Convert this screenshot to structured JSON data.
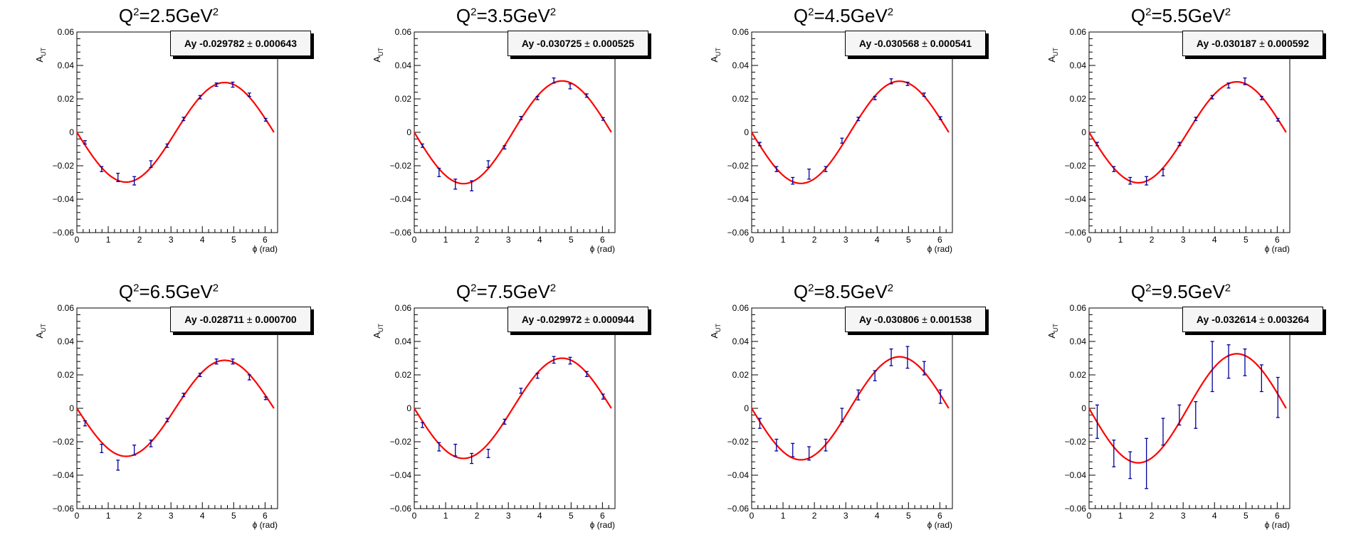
{
  "axis_title_y": "A",
  "axis_title_y_sub": "UT",
  "axis_title_x": "ϕ (rad)",
  "pm_symbol": "±",
  "colors": {
    "fit": "#ff0000",
    "points": "#000099",
    "frame": "#000000"
  },
  "chart_data": [
    {
      "type": "scatter",
      "title_prefix": "Q",
      "title_sup1": "2",
      "title_mid": "=2.5GeV",
      "title_sup2": "2",
      "legend_label": "Ay",
      "legend_value": "-0.029782",
      "legend_error": "0.000643",
      "xlabel": "ϕ (rad)",
      "ylabel": "A_UT",
      "xlim": [
        0,
        6.4
      ],
      "ylim": [
        -0.06,
        0.06
      ],
      "x_ticks": [
        0,
        1,
        2,
        3,
        4,
        5,
        6
      ],
      "y_ticks": [
        -0.06,
        -0.04,
        -0.02,
        0,
        0.02,
        0.04,
        0.06
      ],
      "y_tick_labels": [
        "−0.06",
        "−0.04",
        "−0.02",
        "0",
        "0.02",
        "0.04",
        "0.06"
      ],
      "fit": {
        "function": "Ay*sin(phi)",
        "Ay": -0.029782,
        "Ay_error": 0.000643
      },
      "x": [
        0.26,
        0.79,
        1.31,
        1.83,
        2.36,
        2.88,
        3.4,
        3.93,
        4.45,
        4.97,
        5.5,
        6.02
      ],
      "y": [
        -0.006,
        -0.022,
        -0.027,
        -0.029,
        -0.019,
        -0.008,
        0.008,
        0.021,
        0.0285,
        0.0285,
        0.0225,
        0.0075
      ],
      "err": [
        0.001,
        0.0015,
        0.0025,
        0.0025,
        0.002,
        0.001,
        0.001,
        0.001,
        0.001,
        0.0015,
        0.001,
        0.0008
      ]
    },
    {
      "type": "scatter",
      "title_prefix": "Q",
      "title_sup1": "2",
      "title_mid": "=3.5GeV",
      "title_sup2": "2",
      "legend_label": "Ay",
      "legend_value": "-0.030725",
      "legend_error": "0.000525",
      "xlabel": "ϕ (rad)",
      "ylabel": "A_UT",
      "xlim": [
        0,
        6.4
      ],
      "ylim": [
        -0.06,
        0.06
      ],
      "x_ticks": [
        0,
        1,
        2,
        3,
        4,
        5,
        6
      ],
      "y_ticks": [
        -0.06,
        -0.04,
        -0.02,
        0,
        0.02,
        0.04,
        0.06
      ],
      "y_tick_labels": [
        "−0.06",
        "−0.04",
        "−0.02",
        "0",
        "0.02",
        "0.04",
        "0.06"
      ],
      "fit": {
        "function": "Ay*sin(phi)",
        "Ay": -0.030725,
        "Ay_error": 0.000525
      },
      "x": [
        0.26,
        0.79,
        1.31,
        1.83,
        2.36,
        2.88,
        3.4,
        3.93,
        4.45,
        4.97,
        5.5,
        6.02
      ],
      "y": [
        -0.008,
        -0.024,
        -0.031,
        -0.032,
        -0.019,
        -0.009,
        0.0085,
        0.0205,
        0.031,
        0.0275,
        0.022,
        0.008
      ],
      "err": [
        0.001,
        0.0025,
        0.003,
        0.003,
        0.002,
        0.001,
        0.001,
        0.001,
        0.0015,
        0.0015,
        0.001,
        0.0008
      ]
    },
    {
      "type": "scatter",
      "title_prefix": "Q",
      "title_sup1": "2",
      "title_mid": "=4.5GeV",
      "title_sup2": "2",
      "legend_label": "Ay",
      "legend_value": "-0.030568",
      "legend_error": "0.000541",
      "xlabel": "ϕ (rad)",
      "ylabel": "A_UT",
      "xlim": [
        0,
        6.4
      ],
      "ylim": [
        -0.06,
        0.06
      ],
      "x_ticks": [
        0,
        1,
        2,
        3,
        4,
        5,
        6
      ],
      "y_ticks": [
        -0.06,
        -0.04,
        -0.02,
        0,
        0.02,
        0.04,
        0.06
      ],
      "y_tick_labels": [
        "−0.06",
        "−0.04",
        "−0.02",
        "0",
        "0.02",
        "0.04",
        "0.06"
      ],
      "fit": {
        "function": "Ay*sin(phi)",
        "Ay": -0.030568,
        "Ay_error": 0.000541
      },
      "x": [
        0.26,
        0.79,
        1.31,
        1.83,
        2.36,
        2.88,
        3.4,
        3.93,
        4.45,
        4.97,
        5.5,
        6.02
      ],
      "y": [
        -0.007,
        -0.022,
        -0.029,
        -0.025,
        -0.022,
        -0.005,
        0.008,
        0.0205,
        0.0305,
        0.029,
        0.0225,
        0.0085
      ],
      "err": [
        0.001,
        0.0015,
        0.002,
        0.003,
        0.0015,
        0.0015,
        0.001,
        0.001,
        0.0015,
        0.001,
        0.001,
        0.0008
      ]
    },
    {
      "type": "scatter",
      "title_prefix": "Q",
      "title_sup1": "2",
      "title_mid": "=5.5GeV",
      "title_sup2": "2",
      "legend_label": "Ay",
      "legend_value": "-0.030187",
      "legend_error": "0.000592",
      "xlabel": "ϕ (rad)",
      "ylabel": "A_UT",
      "xlim": [
        0,
        6.4
      ],
      "ylim": [
        -0.06,
        0.06
      ],
      "x_ticks": [
        0,
        1,
        2,
        3,
        4,
        5,
        6
      ],
      "y_ticks": [
        -0.06,
        -0.04,
        -0.02,
        0,
        0.02,
        0.04,
        0.06
      ],
      "y_tick_labels": [
        "−0.06",
        "−0.04",
        "−0.02",
        "0",
        "0.02",
        "0.04",
        "0.06"
      ],
      "fit": {
        "function": "Ay*sin(phi)",
        "Ay": -0.030187,
        "Ay_error": 0.000592
      },
      "x": [
        0.26,
        0.79,
        1.31,
        1.83,
        2.36,
        2.88,
        3.4,
        3.93,
        4.45,
        4.97,
        5.5,
        6.02
      ],
      "y": [
        -0.007,
        -0.022,
        -0.029,
        -0.029,
        -0.024,
        -0.007,
        0.008,
        0.021,
        0.028,
        0.0305,
        0.0205,
        0.0075
      ],
      "err": [
        0.001,
        0.0015,
        0.002,
        0.0025,
        0.002,
        0.001,
        0.001,
        0.001,
        0.0015,
        0.002,
        0.001,
        0.0008
      ]
    },
    {
      "type": "scatter",
      "title_prefix": "Q",
      "title_sup1": "2",
      "title_mid": "=6.5GeV",
      "title_sup2": "2",
      "legend_label": "Ay",
      "legend_value": "-0.028711",
      "legend_error": "0.000700",
      "xlabel": "ϕ (rad)",
      "ylabel": "A_UT",
      "xlim": [
        0,
        6.4
      ],
      "ylim": [
        -0.06,
        0.06
      ],
      "x_ticks": [
        0,
        1,
        2,
        3,
        4,
        5,
        6
      ],
      "y_ticks": [
        -0.06,
        -0.04,
        -0.02,
        0,
        0.02,
        0.04,
        0.06
      ],
      "y_tick_labels": [
        "−0.06",
        "−0.04",
        "−0.02",
        "0",
        "0.02",
        "0.04",
        "0.06"
      ],
      "fit": {
        "function": "Ay*sin(phi)",
        "Ay": -0.028711,
        "Ay_error": 0.0007
      },
      "x": [
        0.26,
        0.79,
        1.31,
        1.83,
        2.36,
        2.88,
        3.4,
        3.93,
        4.45,
        4.97,
        5.5,
        6.02
      ],
      "y": [
        -0.009,
        -0.024,
        -0.034,
        -0.025,
        -0.021,
        -0.007,
        0.008,
        0.02,
        0.028,
        0.028,
        0.0185,
        0.006
      ],
      "err": [
        0.0015,
        0.0025,
        0.003,
        0.003,
        0.002,
        0.001,
        0.001,
        0.001,
        0.0015,
        0.0015,
        0.0015,
        0.0008
      ]
    },
    {
      "type": "scatter",
      "title_prefix": "Q",
      "title_sup1": "2",
      "title_mid": "=7.5GeV",
      "title_sup2": "2",
      "legend_label": "Ay",
      "legend_value": "-0.029972",
      "legend_error": "0.000944",
      "xlabel": "ϕ (rad)",
      "ylabel": "A_UT",
      "xlim": [
        0,
        6.4
      ],
      "ylim": [
        -0.06,
        0.06
      ],
      "x_ticks": [
        0,
        1,
        2,
        3,
        4,
        5,
        6
      ],
      "y_ticks": [
        -0.06,
        -0.04,
        -0.02,
        0,
        0.02,
        0.04,
        0.06
      ],
      "y_tick_labels": [
        "−0.06",
        "−0.04",
        "−0.02",
        "0",
        "0.02",
        "0.04",
        "0.06"
      ],
      "fit": {
        "function": "Ay*sin(phi)",
        "Ay": -0.029972,
        "Ay_error": 0.000944
      },
      "x": [
        0.26,
        0.79,
        1.31,
        1.83,
        2.36,
        2.88,
        3.4,
        3.93,
        4.45,
        4.97,
        5.5,
        6.02
      ],
      "y": [
        -0.01,
        -0.023,
        -0.025,
        -0.03,
        -0.027,
        -0.008,
        0.0105,
        0.0195,
        0.029,
        0.0285,
        0.0205,
        0.007
      ],
      "err": [
        0.0015,
        0.0025,
        0.0035,
        0.003,
        0.0025,
        0.0015,
        0.0015,
        0.0015,
        0.002,
        0.002,
        0.0015,
        0.0015
      ]
    },
    {
      "type": "scatter",
      "title_prefix": "Q",
      "title_sup1": "2",
      "title_mid": "=8.5GeV",
      "title_sup2": "2",
      "legend_label": "Ay",
      "legend_value": "-0.030806",
      "legend_error": "0.001538",
      "xlabel": "ϕ (rad)",
      "ylabel": "A_UT",
      "xlim": [
        0,
        6.4
      ],
      "ylim": [
        -0.06,
        0.06
      ],
      "x_ticks": [
        0,
        1,
        2,
        3,
        4,
        5,
        6
      ],
      "y_ticks": [
        -0.06,
        -0.04,
        -0.02,
        0,
        0.02,
        0.04,
        0.06
      ],
      "y_tick_labels": [
        "−0.06",
        "−0.04",
        "−0.02",
        "0",
        "0.02",
        "0.04",
        "0.06"
      ],
      "fit": {
        "function": "Ay*sin(phi)",
        "Ay": -0.030806,
        "Ay_error": 0.001538
      },
      "x": [
        0.26,
        0.79,
        1.31,
        1.83,
        2.36,
        2.88,
        3.4,
        3.93,
        4.45,
        4.97,
        5.5,
        6.02
      ],
      "y": [
        -0.009,
        -0.022,
        -0.025,
        -0.027,
        -0.022,
        -0.004,
        0.008,
        0.0195,
        0.0305,
        0.0305,
        0.024,
        0.007
      ],
      "err": [
        0.003,
        0.0035,
        0.004,
        0.004,
        0.0035,
        0.004,
        0.003,
        0.003,
        0.005,
        0.0065,
        0.004,
        0.004
      ]
    },
    {
      "type": "scatter",
      "title_prefix": "Q",
      "title_sup1": "2",
      "title_mid": "=9.5GeV",
      "title_sup2": "2",
      "legend_label": "Ay",
      "legend_value": "-0.032614",
      "legend_error": "0.003264",
      "xlabel": "ϕ (rad)",
      "ylabel": "A_UT",
      "xlim": [
        0,
        6.4
      ],
      "ylim": [
        -0.06,
        0.06
      ],
      "x_ticks": [
        0,
        1,
        2,
        3,
        4,
        5,
        6
      ],
      "y_ticks": [
        -0.06,
        -0.04,
        -0.02,
        0,
        0.02,
        0.04,
        0.06
      ],
      "y_tick_labels": [
        "−0.06",
        "−0.04",
        "−0.02",
        "0",
        "0.02",
        "0.04",
        "0.06"
      ],
      "fit": {
        "function": "Ay*sin(phi)",
        "Ay": -0.032614,
        "Ay_error": 0.003264
      },
      "x": [
        0.26,
        0.79,
        1.31,
        1.83,
        2.36,
        2.88,
        3.4,
        3.93,
        4.45,
        4.97,
        5.5,
        6.02
      ],
      "y": [
        -0.008,
        -0.027,
        -0.034,
        -0.033,
        -0.014,
        -0.004,
        -0.004,
        0.025,
        0.028,
        0.0275,
        0.018,
        0.0065
      ],
      "err": [
        0.01,
        0.008,
        0.008,
        0.015,
        0.008,
        0.006,
        0.008,
        0.015,
        0.01,
        0.008,
        0.008,
        0.012
      ]
    }
  ]
}
